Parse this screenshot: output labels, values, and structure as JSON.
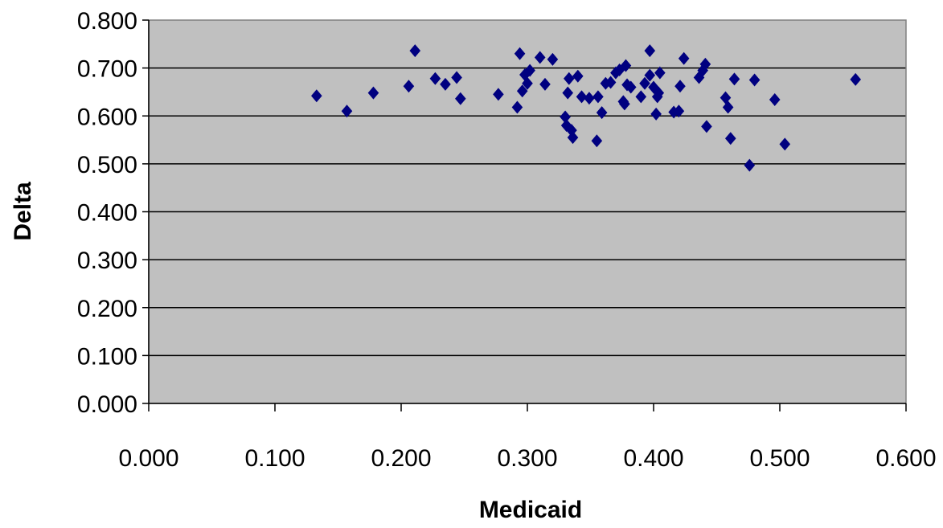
{
  "chart_data": {
    "type": "scatter",
    "title": "",
    "xlabel": "Medicaid",
    "ylabel": "Delta",
    "xlim": [
      0,
      0.6
    ],
    "ylim": [
      0,
      0.8
    ],
    "xticks": [
      "0.000",
      "0.100",
      "0.200",
      "0.300",
      "0.400",
      "0.500",
      "0.600"
    ],
    "yticks": [
      "0.000",
      "0.100",
      "0.200",
      "0.300",
      "0.400",
      "0.500",
      "0.600",
      "0.700",
      "0.800"
    ],
    "grid": "horizontal",
    "legend": "none",
    "marker": "diamond",
    "colors": {
      "plot_area": "#c0c0c0",
      "marker": "#000080",
      "gridline": "#000000"
    },
    "points": [
      [
        0.133,
        0.642
      ],
      [
        0.157,
        0.61
      ],
      [
        0.178,
        0.648
      ],
      [
        0.206,
        0.662
      ],
      [
        0.211,
        0.736
      ],
      [
        0.227,
        0.678
      ],
      [
        0.235,
        0.666
      ],
      [
        0.244,
        0.68
      ],
      [
        0.247,
        0.636
      ],
      [
        0.277,
        0.645
      ],
      [
        0.292,
        0.618
      ],
      [
        0.294,
        0.73
      ],
      [
        0.296,
        0.652
      ],
      [
        0.298,
        0.686
      ],
      [
        0.3,
        0.668
      ],
      [
        0.302,
        0.695
      ],
      [
        0.31,
        0.722
      ],
      [
        0.314,
        0.666
      ],
      [
        0.32,
        0.718
      ],
      [
        0.33,
        0.598
      ],
      [
        0.331,
        0.58
      ],
      [
        0.332,
        0.648
      ],
      [
        0.333,
        0.678
      ],
      [
        0.335,
        0.57
      ],
      [
        0.336,
        0.555
      ],
      [
        0.34,
        0.683
      ],
      [
        0.343,
        0.64
      ],
      [
        0.349,
        0.637
      ],
      [
        0.355,
        0.548
      ],
      [
        0.356,
        0.64
      ],
      [
        0.359,
        0.607
      ],
      [
        0.362,
        0.668
      ],
      [
        0.366,
        0.67
      ],
      [
        0.37,
        0.69
      ],
      [
        0.373,
        0.696
      ],
      [
        0.376,
        0.63
      ],
      [
        0.377,
        0.625
      ],
      [
        0.378,
        0.705
      ],
      [
        0.379,
        0.665
      ],
      [
        0.382,
        0.66
      ],
      [
        0.39,
        0.64
      ],
      [
        0.393,
        0.668
      ],
      [
        0.397,
        0.736
      ],
      [
        0.397,
        0.685
      ],
      [
        0.4,
        0.66
      ],
      [
        0.402,
        0.604
      ],
      [
        0.403,
        0.64
      ],
      [
        0.404,
        0.648
      ],
      [
        0.405,
        0.69
      ],
      [
        0.416,
        0.608
      ],
      [
        0.42,
        0.61
      ],
      [
        0.421,
        0.662
      ],
      [
        0.424,
        0.72
      ],
      [
        0.436,
        0.68
      ],
      [
        0.439,
        0.695
      ],
      [
        0.441,
        0.708
      ],
      [
        0.442,
        0.578
      ],
      [
        0.457,
        0.638
      ],
      [
        0.459,
        0.618
      ],
      [
        0.461,
        0.553
      ],
      [
        0.464,
        0.677
      ],
      [
        0.48,
        0.675
      ],
      [
        0.476,
        0.497
      ],
      [
        0.496,
        0.634
      ],
      [
        0.504,
        0.541
      ],
      [
        0.56,
        0.676
      ]
    ]
  }
}
